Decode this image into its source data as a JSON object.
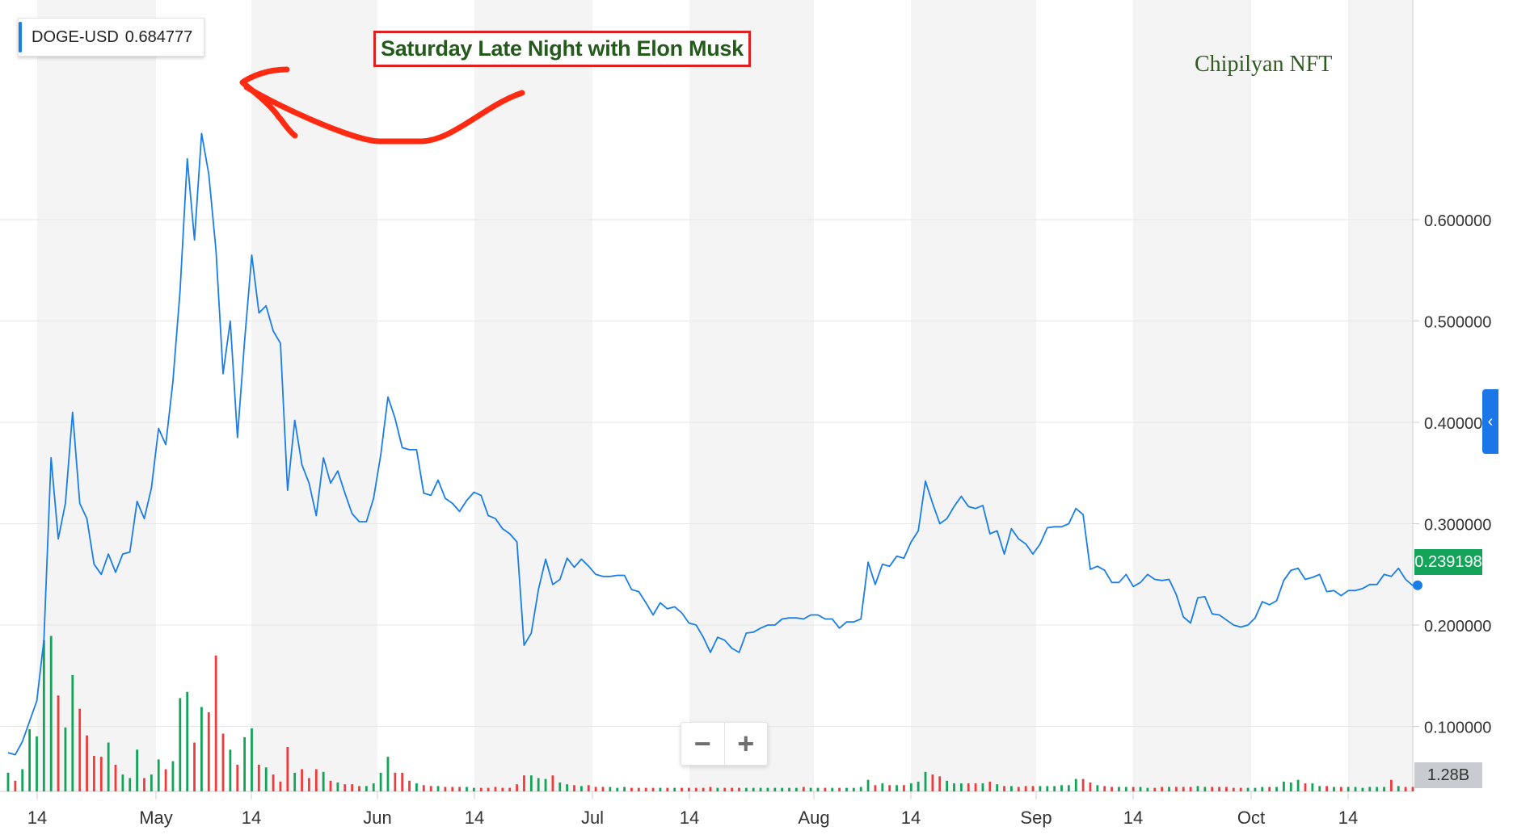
{
  "legend": {
    "symbol": "DOGE-USD",
    "value": "0.684777"
  },
  "annotation": {
    "headline": "Saturday Late Night with Elon Musk"
  },
  "watermark": "Chipilyan NFT",
  "last_price_label": "0.239198",
  "volume_label": "1.28B",
  "zoom": {
    "minus": "−",
    "plus": "+"
  },
  "collapse_icon": "chevron-left-icon",
  "colors": {
    "line": "#1a7ee8",
    "up": "#13a459",
    "down": "#ee3b3b",
    "band": "#f4f4f4",
    "arrow": "#ff2a12"
  },
  "chart_data": {
    "type": "line",
    "title": "",
    "series": [
      {
        "name": "DOGE-USD",
        "values": [
          0.074,
          0.072,
          0.085,
          0.105,
          0.125,
          0.185,
          0.365,
          0.285,
          0.32,
          0.41,
          0.32,
          0.305,
          0.26,
          0.25,
          0.27,
          0.252,
          0.27,
          0.272,
          0.322,
          0.305,
          0.335,
          0.394,
          0.378,
          0.44,
          0.53,
          0.66,
          0.58,
          0.685,
          0.645,
          0.57,
          0.448,
          0.5,
          0.385,
          0.48,
          0.565,
          0.508,
          0.515,
          0.49,
          0.478,
          0.333,
          0.402,
          0.358,
          0.34,
          0.308,
          0.365,
          0.34,
          0.352,
          0.33,
          0.31,
          0.302,
          0.302,
          0.325,
          0.368,
          0.425,
          0.404,
          0.375,
          0.373,
          0.373,
          0.33,
          0.328,
          0.343,
          0.325,
          0.32,
          0.312,
          0.323,
          0.331,
          0.328,
          0.308,
          0.305,
          0.295,
          0.29,
          0.282,
          0.18,
          0.192,
          0.235,
          0.265,
          0.24,
          0.245,
          0.266,
          0.257,
          0.265,
          0.258,
          0.25,
          0.248,
          0.248,
          0.249,
          0.249,
          0.235,
          0.233,
          0.222,
          0.21,
          0.222,
          0.216,
          0.218,
          0.212,
          0.202,
          0.2,
          0.188,
          0.173,
          0.188,
          0.185,
          0.177,
          0.173,
          0.192,
          0.193,
          0.197,
          0.2,
          0.2,
          0.206,
          0.207,
          0.207,
          0.206,
          0.21,
          0.21,
          0.206,
          0.206,
          0.197,
          0.203,
          0.203,
          0.206,
          0.262,
          0.24,
          0.26,
          0.258,
          0.268,
          0.266,
          0.282,
          0.293,
          0.342,
          0.32,
          0.3,
          0.305,
          0.317,
          0.327,
          0.317,
          0.315,
          0.318,
          0.29,
          0.293,
          0.27,
          0.295,
          0.285,
          0.28,
          0.27,
          0.28,
          0.296,
          0.297,
          0.297,
          0.3,
          0.315,
          0.309,
          0.255,
          0.258,
          0.254,
          0.242,
          0.242,
          0.25,
          0.238,
          0.242,
          0.25,
          0.245,
          0.244,
          0.245,
          0.23,
          0.208,
          0.202,
          0.227,
          0.228,
          0.211,
          0.21,
          0.205,
          0.2,
          0.198,
          0.2,
          0.207,
          0.223,
          0.22,
          0.224,
          0.244,
          0.254,
          0.256,
          0.245,
          0.247,
          0.25,
          0.233,
          0.234,
          0.229,
          0.234,
          0.234,
          0.236,
          0.24,
          0.24,
          0.25,
          0.248,
          0.256,
          0.245,
          0.239
        ]
      }
    ],
    "volume": {
      "values": [
        2.1,
        1.2,
        2.5,
        7.0,
        6.2,
        17,
        17.5,
        10.8,
        7.2,
        13.1,
        9.3,
        6.3,
        4.0,
        3.9,
        5.5,
        3.0,
        1.9,
        1.5,
        4.7,
        1.5,
        1.9,
        3.6,
        2.5,
        3.4,
        10.5,
        11.2,
        5.5,
        9.5,
        8.9,
        15.3,
        6.5,
        4.7,
        3.0,
        6.1,
        7.1,
        3.0,
        2.7,
        1.9,
        1.1,
        5.0,
        2.1,
        2.5,
        1.5,
        2.5,
        2.2,
        1.2,
        1.0,
        0.8,
        0.8,
        0.6,
        0.6,
        0.9,
        2.1,
        3.9,
        2.1,
        2.1,
        1.2,
        0.9,
        0.7,
        0.6,
        0.6,
        0.5,
        0.5,
        0.5,
        0.5,
        0.4,
        0.4,
        0.4,
        0.5,
        0.4,
        0.4,
        0.8,
        1.8,
        1.8,
        1.5,
        1.4,
        1.8,
        1.0,
        0.8,
        0.7,
        0.6,
        0.7,
        0.5,
        0.5,
        0.5,
        0.4,
        0.5,
        0.4,
        0.4,
        0.4,
        0.4,
        0.4,
        0.4,
        0.4,
        0.4,
        0.4,
        0.4,
        0.4,
        0.5,
        0.4,
        0.4,
        0.4,
        0.4,
        0.4,
        0.4,
        0.4,
        0.4,
        0.4,
        0.4,
        0.4,
        0.4,
        0.5,
        0.4,
        0.4,
        0.4,
        0.4,
        0.4,
        0.4,
        0.4,
        0.5,
        1.3,
        0.7,
        0.9,
        0.7,
        0.7,
        0.7,
        0.9,
        1.1,
        2.2,
        1.9,
        1.7,
        1.2,
        0.9,
        0.9,
        0.9,
        0.9,
        0.9,
        1.1,
        0.8,
        0.6,
        0.6,
        0.5,
        0.6,
        0.6,
        0.6,
        0.6,
        0.6,
        0.7,
        0.7,
        1.4,
        1.4,
        1.0,
        0.7,
        0.6,
        0.5,
        0.5,
        0.5,
        0.5,
        0.5,
        0.4,
        0.4,
        0.5,
        0.5,
        0.5,
        0.5,
        0.5,
        0.6,
        0.5,
        0.5,
        0.5,
        0.5,
        0.4,
        0.4,
        0.4,
        0.4,
        0.5,
        0.5,
        0.5,
        1.1,
        1.0,
        1.3,
        0.9,
        0.9,
        0.6,
        0.6,
        0.5,
        0.5,
        0.5,
        0.5,
        0.4,
        0.5,
        0.5,
        0.5,
        1.3,
        0.6,
        0.5,
        0.5
      ]
    },
    "x_tick_labels": [
      "14",
      "May",
      "14",
      "Jun",
      "14",
      "Jul",
      "14",
      "Aug",
      "14",
      "Sep",
      "14",
      "Oct",
      "14"
    ],
    "y_tick_labels": [
      "0.600000",
      "0.500000",
      "0.400000",
      "0.300000",
      "0.200000",
      "0.100000"
    ],
    "y_ticks": [
      0.6,
      0.5,
      0.4,
      0.3,
      0.2,
      0.1
    ],
    "ylim": [
      0.05,
      0.7
    ],
    "grid": true,
    "last_value": 0.239198
  }
}
